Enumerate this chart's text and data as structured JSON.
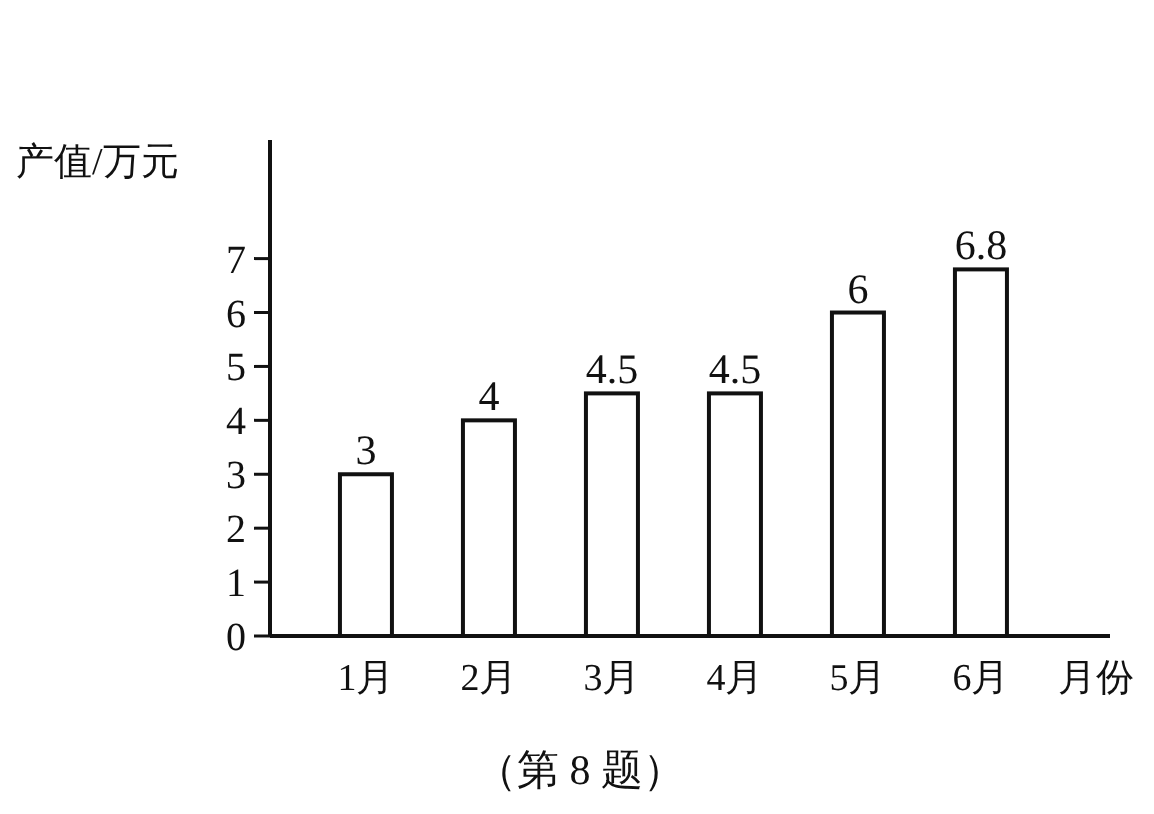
{
  "chart_data": {
    "type": "bar",
    "ylabel": "产值/万元",
    "xlabel": "月份",
    "categories": [
      "1月",
      "2月",
      "3月",
      "4月",
      "5月",
      "6月"
    ],
    "values": [
      3,
      4,
      4.5,
      4.5,
      6,
      6.8
    ],
    "color": "#ffffff",
    "ylim": [
      0,
      9.2
    ],
    "yticks": [
      0,
      1,
      2,
      3,
      4,
      5,
      6,
      7
    ],
    "data_labels": true,
    "grid": false,
    "annotations": [
      "（第 8 题）"
    ]
  }
}
